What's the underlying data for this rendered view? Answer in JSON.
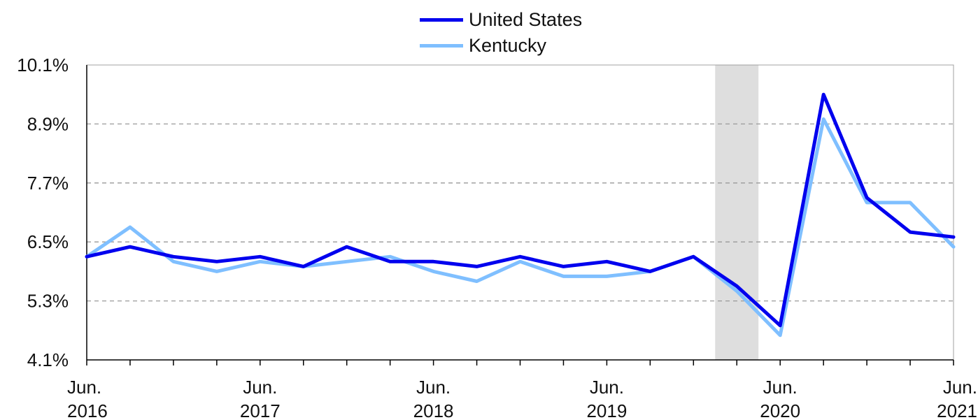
{
  "colors": {
    "us_line": "#0000ee",
    "ky_line": "#7fbfff",
    "recession": "#dedede",
    "grid": "#9a9a9a",
    "axis": "#000000"
  },
  "chart_data": {
    "type": "line",
    "x": [
      "2016-06",
      "2016-09",
      "2016-12",
      "2017-03",
      "2017-06",
      "2017-09",
      "2017-12",
      "2018-03",
      "2018-06",
      "2018-09",
      "2018-12",
      "2019-03",
      "2019-06",
      "2019-09",
      "2019-12",
      "2020-03",
      "2020-06",
      "2020-09",
      "2020-12",
      "2021-03",
      "2021-06"
    ],
    "series": [
      {
        "name": "United States",
        "color": "#0000ee",
        "values": [
          6.2,
          6.4,
          6.2,
          6.1,
          6.2,
          6.0,
          6.4,
          6.1,
          6.1,
          6.0,
          6.2,
          6.0,
          6.1,
          5.9,
          6.2,
          5.6,
          4.8,
          9.5,
          7.4,
          6.7,
          6.6
        ]
      },
      {
        "name": "Kentucky",
        "color": "#7fbfff",
        "values": [
          6.2,
          6.8,
          6.1,
          5.9,
          6.1,
          6.0,
          6.1,
          6.2,
          5.9,
          5.7,
          6.1,
          5.8,
          5.8,
          5.9,
          6.2,
          5.5,
          4.6,
          9.0,
          7.3,
          7.3,
          6.4
        ]
      }
    ],
    "ylim": [
      4.1,
      10.1
    ],
    "yticks": [
      "4.1%",
      "5.3%",
      "6.5%",
      "7.7%",
      "8.9%",
      "10.1%"
    ],
    "ytick_values": [
      4.1,
      5.3,
      6.5,
      7.7,
      8.9,
      10.1
    ],
    "xtick_labels": [
      {
        "month": "Jun.",
        "year": "2016",
        "index": 0
      },
      {
        "month": "Jun.",
        "year": "2017",
        "index": 4
      },
      {
        "month": "Jun.",
        "year": "2018",
        "index": 8
      },
      {
        "month": "Jun.",
        "year": "2019",
        "index": 12
      },
      {
        "month": "Jun.",
        "year": "2020",
        "index": 16
      },
      {
        "month": "Jun.",
        "year": "2021",
        "index": 20
      }
    ],
    "recession_band": {
      "start_index": 14.5,
      "end_index": 15.5
    },
    "grid": "horizontal dashed",
    "legend_position": "top-center"
  }
}
